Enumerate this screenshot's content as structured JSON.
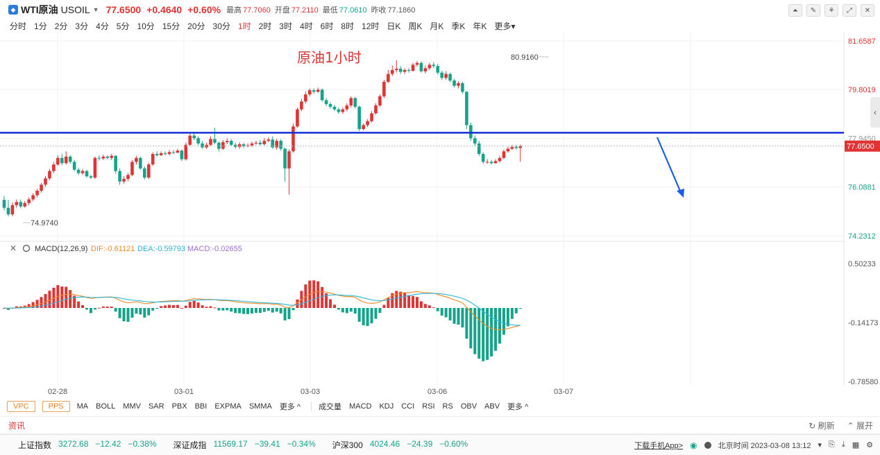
{
  "quote": {
    "symbol": "WTI原油",
    "code": "USOIL",
    "price": "77.6500",
    "change": "+0.4640",
    "change_pct": "+0.60%",
    "stats": [
      {
        "label": "最高",
        "value": "77.7060",
        "color": "red"
      },
      {
        "label": "开盘",
        "value": "77.2110",
        "color": "red"
      },
      {
        "label": "最低",
        "value": "77.0610",
        "color": "green"
      },
      {
        "label": "昨收",
        "value": "77.1860",
        "color": "plain"
      }
    ]
  },
  "periods": [
    "分时",
    "1分",
    "2分",
    "3分",
    "4分",
    "5分",
    "10分",
    "15分",
    "20分",
    "30分",
    "1时",
    "2时",
    "3时",
    "4时",
    "6时",
    "8时",
    "12时",
    "日K",
    "周K",
    "月K",
    "季K",
    "年K",
    "更多"
  ],
  "active_period": "1时",
  "colors": {
    "up": "#e03434",
    "down": "#14a38b",
    "hline": "#1030d8",
    "arrow": "#1a5ee8",
    "dif": "#f08a24",
    "dea": "#2bb6d6"
  },
  "chart_data": {
    "type": "candlestick",
    "annotation": "原油1小时",
    "y_ticks": [
      "81.6587",
      "79.8019",
      "77.9450",
      "76.0881",
      "74.2312"
    ],
    "price_tag": "77.6500",
    "high_label": "80.9160",
    "low_label": "74.9740",
    "x_labels": [
      "02-28",
      "03-01",
      "03-03",
      "03-06",
      "03-07"
    ],
    "horizontal_line_level": 78.16,
    "dashed_current_level": 77.65,
    "candles": [
      [
        75.6,
        75.3,
        75.75,
        75.2
      ],
      [
        75.3,
        75.05,
        75.6,
        74.97
      ],
      [
        75.05,
        75.4,
        75.5,
        74.98
      ],
      [
        75.4,
        75.52,
        75.62,
        75.3
      ],
      [
        75.52,
        75.35,
        75.62,
        75.28
      ],
      [
        75.35,
        75.48,
        75.55,
        75.3
      ],
      [
        75.48,
        75.62,
        75.7,
        75.4
      ],
      [
        75.62,
        75.78,
        75.85,
        75.55
      ],
      [
        75.78,
        75.95,
        76.02,
        75.7
      ],
      [
        75.95,
        76.18,
        76.25,
        75.88
      ],
      [
        76.18,
        76.42,
        76.5,
        76.1
      ],
      [
        76.42,
        76.7,
        76.78,
        76.35
      ],
      [
        76.7,
        76.95,
        77.05,
        76.62
      ],
      [
        76.95,
        77.2,
        77.3,
        76.9
      ],
      [
        77.2,
        77.0,
        77.35,
        76.92
      ],
      [
        77.0,
        77.25,
        77.45,
        76.95
      ],
      [
        77.25,
        77.05,
        77.3,
        76.98
      ],
      [
        77.05,
        76.75,
        77.12,
        76.7
      ],
      [
        76.75,
        76.62,
        76.82,
        76.55
      ],
      [
        76.62,
        76.7,
        76.78,
        76.55
      ],
      [
        76.7,
        76.5,
        76.75,
        76.45
      ],
      [
        76.5,
        76.45,
        76.55,
        76.4
      ],
      [
        76.45,
        77.2,
        77.25,
        76.4
      ],
      [
        77.2,
        77.18,
        77.3,
        77.1
      ],
      [
        77.18,
        77.25,
        77.32,
        77.12
      ],
      [
        77.25,
        77.2,
        77.3,
        77.15
      ],
      [
        77.2,
        77.28,
        77.35,
        77.12
      ],
      [
        77.28,
        76.7,
        77.3,
        76.6
      ],
      [
        76.7,
        76.3,
        76.8,
        76.18
      ],
      [
        76.3,
        76.4,
        76.5,
        76.22
      ],
      [
        76.4,
        76.55,
        76.62,
        76.32
      ],
      [
        76.55,
        77.05,
        77.12,
        76.5
      ],
      [
        77.05,
        77.2,
        77.28,
        76.95
      ],
      [
        77.2,
        76.8,
        77.25,
        76.75
      ],
      [
        76.8,
        76.45,
        76.88,
        76.38
      ],
      [
        76.45,
        76.95,
        77.02,
        76.4
      ],
      [
        76.95,
        77.35,
        77.42,
        76.9
      ],
      [
        77.35,
        77.3,
        77.45,
        77.25
      ],
      [
        77.3,
        77.38,
        77.45,
        77.28
      ],
      [
        77.38,
        77.35,
        77.45,
        77.3
      ],
      [
        77.35,
        77.42,
        77.5,
        77.3
      ],
      [
        77.42,
        77.4,
        77.5,
        77.35
      ],
      [
        77.4,
        77.48,
        77.55,
        77.38
      ],
      [
        77.48,
        77.15,
        77.52,
        77.08
      ],
      [
        77.15,
        77.7,
        77.78,
        77.1
      ],
      [
        77.7,
        78.05,
        78.12,
        77.65
      ],
      [
        78.05,
        77.95,
        78.18,
        77.88
      ],
      [
        77.95,
        77.75,
        78.02,
        77.68
      ],
      [
        77.75,
        77.6,
        77.85,
        77.55
      ],
      [
        77.6,
        77.7,
        77.78,
        77.55
      ],
      [
        77.7,
        77.92,
        78.02,
        77.65
      ],
      [
        77.92,
        77.78,
        78.35,
        77.72
      ],
      [
        77.78,
        77.55,
        77.82,
        77.45
      ],
      [
        77.55,
        77.8,
        77.88,
        77.5
      ],
      [
        77.8,
        77.85,
        77.95,
        77.72
      ],
      [
        77.85,
        77.7,
        77.92,
        77.65
      ],
      [
        77.7,
        77.62,
        77.78,
        77.55
      ],
      [
        77.62,
        77.72,
        77.8,
        77.55
      ],
      [
        77.72,
        77.65,
        77.78,
        77.58
      ],
      [
        77.65,
        77.68,
        77.75,
        77.6
      ],
      [
        77.68,
        77.75,
        77.82,
        77.62
      ],
      [
        77.75,
        77.78,
        77.85,
        77.7
      ],
      [
        77.78,
        77.72,
        77.88,
        77.68
      ],
      [
        77.72,
        77.85,
        77.95,
        77.68
      ],
      [
        77.85,
        77.9,
        77.98,
        77.8
      ],
      [
        77.9,
        77.6,
        78.02,
        77.55
      ],
      [
        77.6,
        77.85,
        77.92,
        77.52
      ],
      [
        77.85,
        77.55,
        77.92,
        77.48
      ],
      [
        77.55,
        76.8,
        77.6,
        76.3
      ],
      [
        76.8,
        77.45,
        77.52,
        75.8
      ],
      [
        77.45,
        78.4,
        78.5,
        77.4
      ],
      [
        78.4,
        79.05,
        79.12,
        78.35
      ],
      [
        79.05,
        79.35,
        79.45,
        78.98
      ],
      [
        79.35,
        79.62,
        79.72,
        79.28
      ],
      [
        79.62,
        79.78,
        79.85,
        79.55
      ],
      [
        79.78,
        79.72,
        79.85,
        79.65
      ],
      [
        79.72,
        79.8,
        79.88,
        79.68
      ],
      [
        79.8,
        79.4,
        79.85,
        79.35
      ],
      [
        79.4,
        79.25,
        79.48,
        79.18
      ],
      [
        79.25,
        79.15,
        79.32,
        79.08
      ],
      [
        79.15,
        79.05,
        79.22,
        78.98
      ],
      [
        79.05,
        78.95,
        79.12,
        78.88
      ],
      [
        78.95,
        79.05,
        79.12,
        78.88
      ],
      [
        79.05,
        79.2,
        79.28,
        78.98
      ],
      [
        79.2,
        79.48,
        79.55,
        79.12
      ],
      [
        79.48,
        79.15,
        79.52,
        79.08
      ],
      [
        79.15,
        78.3,
        79.2,
        78.22
      ],
      [
        78.3,
        78.45,
        78.52,
        78.25
      ],
      [
        78.45,
        78.6,
        78.68,
        78.38
      ],
      [
        78.6,
        78.9,
        78.98,
        78.55
      ],
      [
        78.9,
        79.2,
        79.28,
        78.85
      ],
      [
        79.2,
        79.55,
        79.62,
        79.15
      ],
      [
        79.55,
        80.1,
        80.18,
        79.48
      ],
      [
        80.1,
        80.4,
        80.55,
        80.05
      ],
      [
        80.4,
        80.55,
        80.72,
        80.32
      ],
      [
        80.55,
        80.6,
        80.92,
        80.45
      ],
      [
        80.6,
        80.48,
        80.7,
        80.4
      ],
      [
        80.48,
        80.55,
        80.62,
        80.4
      ],
      [
        80.55,
        80.52,
        80.62,
        80.45
      ],
      [
        80.52,
        80.75,
        80.82,
        80.48
      ],
      [
        80.75,
        80.82,
        80.9,
        80.68
      ],
      [
        80.82,
        80.5,
        80.88,
        80.45
      ],
      [
        80.5,
        80.62,
        80.72,
        80.42
      ],
      [
        80.62,
        80.75,
        80.82,
        80.55
      ],
      [
        80.75,
        80.7,
        80.85,
        80.62
      ],
      [
        80.7,
        80.45,
        80.78,
        80.38
      ],
      [
        80.45,
        80.25,
        80.52,
        80.18
      ],
      [
        80.25,
        80.4,
        80.5,
        80.18
      ],
      [
        80.4,
        80.15,
        80.45,
        80.08
      ],
      [
        80.15,
        79.95,
        80.22,
        79.88
      ],
      [
        79.95,
        80.05,
        80.12,
        79.85
      ],
      [
        80.05,
        79.72,
        80.1,
        79.65
      ],
      [
        79.72,
        78.45,
        79.75,
        78.3
      ],
      [
        78.45,
        77.95,
        78.55,
        77.85
      ],
      [
        77.95,
        77.75,
        78.05,
        77.65
      ],
      [
        77.75,
        77.35,
        77.85,
        77.28
      ],
      [
        77.35,
        77.05,
        77.42,
        76.98
      ],
      [
        77.05,
        77.05,
        77.15,
        76.98
      ],
      [
        77.05,
        77.0,
        77.12,
        76.95
      ],
      [
        77.0,
        77.08,
        77.15,
        76.98
      ],
      [
        77.08,
        77.2,
        77.28,
        77.02
      ],
      [
        77.2,
        77.45,
        77.52,
        77.15
      ],
      [
        77.45,
        77.55,
        77.62,
        77.4
      ],
      [
        77.55,
        77.62,
        77.7,
        77.5
      ],
      [
        77.62,
        77.58,
        77.7,
        77.52
      ],
      [
        77.58,
        77.65,
        77.71,
        77.06
      ]
    ],
    "macd": {
      "title": "MACD(12,26,9)",
      "dif": "DIF:-0.61121",
      "dea": "DEA:-0.59793",
      "macd": "MACD:-0.02655",
      "y_ticks": [
        "0.50233",
        "-0.14173",
        "-0.78580"
      ]
    }
  },
  "indicators": {
    "main": [
      "VPC",
      "PPS"
    ],
    "overlays": [
      "MA",
      "BOLL",
      "MMV",
      "SAR",
      "PBX",
      "BBI",
      "EXPMA",
      "SMMA",
      "更多 ^"
    ],
    "subs": [
      "成交量",
      "MACD",
      "KDJ",
      "CCI",
      "RSI",
      "RS",
      "OBV",
      "ABV",
      "更多 ^"
    ]
  },
  "news": {
    "title": "资讯",
    "refresh": "刷新",
    "expand": "展开"
  },
  "indices": [
    {
      "name": "上证指数",
      "value": "3272.68",
      "change": "−12.42",
      "pct": "−0.38%"
    },
    {
      "name": "深证成指",
      "value": "11569.17",
      "change": "−39.41",
      "pct": "−0.34%"
    },
    {
      "name": "沪深300",
      "value": "4024.46",
      "change": "−24.39",
      "pct": "−0.60%"
    }
  ],
  "status": {
    "download": "下载手机App>",
    "time": "北京时间 2023-03-08 13:12"
  }
}
